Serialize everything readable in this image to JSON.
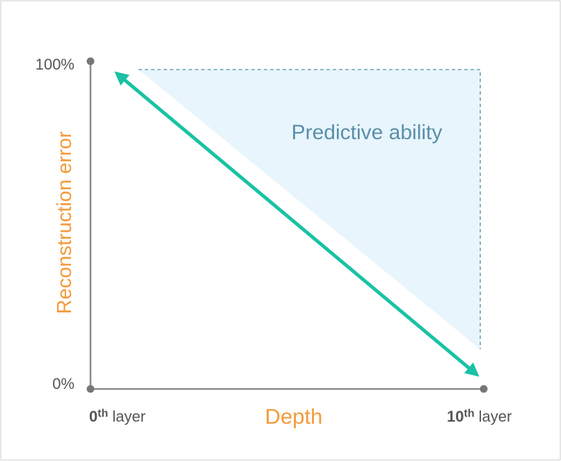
{
  "y_axis": {
    "label": "Reconstruction error",
    "top_tick": "100%",
    "bottom_tick": "0%"
  },
  "x_axis": {
    "label": "Depth",
    "left_tick": {
      "num": "0",
      "sup": "th",
      "word": "layer"
    },
    "right_tick": {
      "num": "10",
      "sup": "th",
      "word": "layer"
    }
  },
  "region_label": "Predictive ability",
  "colors": {
    "axis": "#777777",
    "tick_text": "#555555",
    "axis_label": "#f39a3a",
    "arrow": "#19c2a4",
    "region_fill": "#e8f5fc",
    "region_stroke": "#6e9fb6",
    "region_text": "#5b8fa8"
  }
}
